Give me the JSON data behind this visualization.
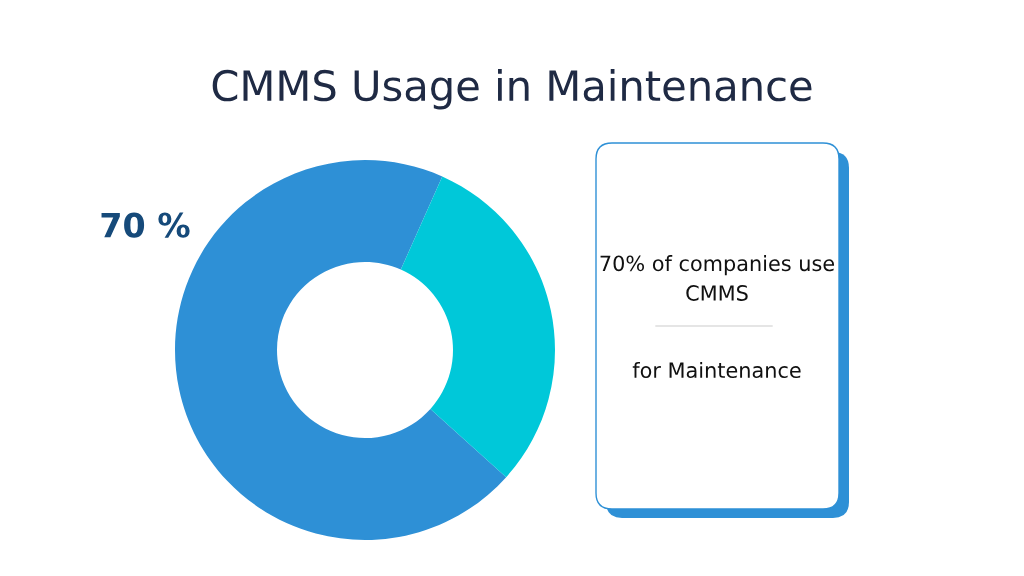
{
  "chart_data": {
    "type": "donut",
    "title": "CMMS Usage in Maintenance",
    "categories": [
      null,
      null
    ],
    "values": [
      70,
      30
    ],
    "colors": [
      "#2e90d6",
      "#00c8d9"
    ],
    "value_labels": [
      "70 %",
      null
    ],
    "annotations": [
      "70% of companies use CMMS",
      "for Maintenance"
    ]
  }
}
